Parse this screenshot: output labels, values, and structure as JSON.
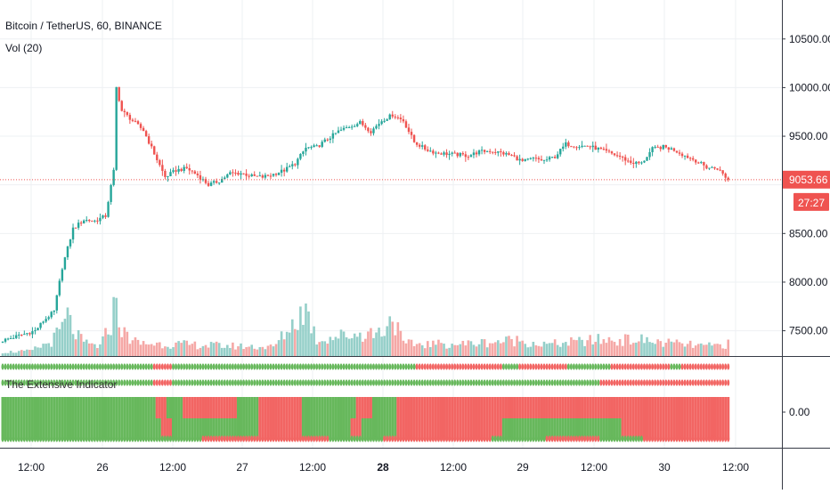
{
  "header": {
    "symbol_line": "Bitcoin / TetherUS, 60, BINANCE",
    "volume_line": "Vol (20)",
    "indicator_title": "The Extensive Indicator"
  },
  "price_axis": {
    "ticks": [
      "10500.00",
      "10000.00",
      "9500.00",
      "9000.00",
      "8500.00",
      "8000.00",
      "7500.00"
    ],
    "last_price": "9053.66",
    "countdown": "27:27"
  },
  "indicator_axis": {
    "ticks": [
      "0.00"
    ]
  },
  "time_axis": {
    "labels": [
      "12:00",
      "26",
      "12:00",
      "27",
      "12:00",
      "28",
      "12:00",
      "29",
      "12:00",
      "30",
      "12:00"
    ],
    "bold": [
      "28"
    ]
  },
  "colors": {
    "up": "#26a69a",
    "down": "#ef5350",
    "up_volume": "#95cfc9",
    "down_volume": "#f5a8a6",
    "indicator_green": "#67b85c",
    "indicator_red": "#f26563",
    "grid": "#eef0f3",
    "border": "#363a45"
  },
  "chart_data": [
    {
      "type": "candlestick",
      "title": "Bitcoin / TetherUS, 60, BINANCE",
      "ylim": [
        7240,
        10800
      ],
      "y_ticks": [
        7500,
        8000,
        8500,
        9000,
        9500,
        10000,
        10500
      ],
      "last_price": 9053.66,
      "price_anchors": [
        [
          0,
          7400
        ],
        [
          6,
          7450
        ],
        [
          12,
          7500
        ],
        [
          15,
          7600
        ],
        [
          19,
          7700
        ],
        [
          22,
          8150
        ],
        [
          26,
          8550
        ],
        [
          30,
          8640
        ],
        [
          34,
          8630
        ],
        [
          38,
          8680
        ],
        [
          41,
          9140
        ],
        [
          42,
          10000
        ],
        [
          44,
          9760
        ],
        [
          48,
          9660
        ],
        [
          52,
          9560
        ],
        [
          56,
          9320
        ],
        [
          60,
          9080
        ],
        [
          64,
          9150
        ],
        [
          68,
          9170
        ],
        [
          72,
          9100
        ],
        [
          76,
          9000
        ],
        [
          80,
          9040
        ],
        [
          84,
          9120
        ],
        [
          88,
          9120
        ],
        [
          92,
          9090
        ],
        [
          96,
          9080
        ],
        [
          100,
          9110
        ],
        [
          104,
          9150
        ],
        [
          108,
          9220
        ],
        [
          112,
          9380
        ],
        [
          116,
          9390
        ],
        [
          120,
          9470
        ],
        [
          124,
          9550
        ],
        [
          128,
          9600
        ],
        [
          132,
          9640
        ],
        [
          136,
          9550
        ],
        [
          140,
          9660
        ],
        [
          144,
          9720
        ],
        [
          148,
          9660
        ],
        [
          152,
          9440
        ],
        [
          156,
          9370
        ],
        [
          160,
          9330
        ],
        [
          164,
          9320
        ],
        [
          168,
          9310
        ],
        [
          172,
          9300
        ],
        [
          176,
          9340
        ],
        [
          180,
          9350
        ],
        [
          184,
          9330
        ],
        [
          188,
          9300
        ],
        [
          192,
          9240
        ],
        [
          196,
          9270
        ],
        [
          200,
          9250
        ],
        [
          204,
          9290
        ],
        [
          208,
          9420
        ],
        [
          212,
          9400
        ],
        [
          216,
          9400
        ],
        [
          220,
          9370
        ],
        [
          224,
          9330
        ],
        [
          228,
          9290
        ],
        [
          232,
          9230
        ],
        [
          236,
          9220
        ],
        [
          240,
          9370
        ],
        [
          244,
          9390
        ],
        [
          248,
          9360
        ],
        [
          252,
          9300
        ],
        [
          256,
          9250
        ],
        [
          260,
          9180
        ],
        [
          264,
          9170
        ],
        [
          268,
          9053
        ]
      ]
    },
    {
      "type": "bar",
      "name": "Vol (20)",
      "volume_anchors": [
        [
          0,
          0.05
        ],
        [
          10,
          0.06
        ],
        [
          18,
          0.18
        ],
        [
          22,
          0.35
        ],
        [
          24,
          0.5
        ],
        [
          26,
          0.32
        ],
        [
          30,
          0.16
        ],
        [
          36,
          0.12
        ],
        [
          40,
          0.4
        ],
        [
          42,
          0.75
        ],
        [
          44,
          0.3
        ],
        [
          50,
          0.16
        ],
        [
          60,
          0.15
        ],
        [
          80,
          0.13
        ],
        [
          100,
          0.11
        ],
        [
          112,
          0.6
        ],
        [
          116,
          0.2
        ],
        [
          124,
          0.25
        ],
        [
          140,
          0.3
        ],
        [
          144,
          0.5
        ],
        [
          148,
          0.15
        ],
        [
          170,
          0.15
        ],
        [
          190,
          0.2
        ],
        [
          200,
          0.14
        ],
        [
          220,
          0.2
        ],
        [
          236,
          0.2
        ],
        [
          240,
          0.18
        ],
        [
          260,
          0.12
        ],
        [
          268,
          0.15
        ]
      ]
    },
    {
      "type": "heatmap",
      "name": "The Extensive Indicator",
      "rows": [
        {
          "kind": "dots",
          "segments": [
            [
              0,
              55,
              "g"
            ],
            [
              56,
              62,
              "r"
            ],
            [
              63,
              92,
              "g"
            ],
            [
              93,
              152,
              "g"
            ],
            [
              153,
              184,
              "r"
            ],
            [
              185,
              190,
              "g"
            ],
            [
              191,
              208,
              "r"
            ],
            [
              209,
              224,
              "g"
            ],
            [
              225,
              246,
              "r"
            ],
            [
              247,
              250,
              "g"
            ],
            [
              251,
              268,
              "r"
            ]
          ]
        },
        {
          "kind": "dots",
          "segments": [
            [
              0,
              55,
              "g"
            ],
            [
              56,
              62,
              "r"
            ],
            [
              63,
              160,
              "g"
            ],
            [
              161,
              220,
              "g"
            ],
            [
              221,
              268,
              "r"
            ]
          ]
        },
        {
          "kind": "bars",
          "segments": [
            [
              0,
              56,
              "g"
            ],
            [
              57,
              60,
              "r"
            ],
            [
              61,
              66,
              "g"
            ],
            [
              67,
              86,
              "r"
            ],
            [
              87,
              94,
              "g"
            ],
            [
              95,
              110,
              "r"
            ],
            [
              111,
              130,
              "g"
            ],
            [
              131,
              136,
              "r"
            ],
            [
              137,
              145,
              "g"
            ],
            [
              146,
              268,
              "r"
            ]
          ]
        },
        {
          "kind": "bars",
          "segments": [
            [
              0,
              58,
              "g"
            ],
            [
              59,
              62,
              "r"
            ],
            [
              63,
              94,
              "g"
            ],
            [
              95,
              110,
              "r"
            ],
            [
              111,
              128,
              "g"
            ],
            [
              129,
              132,
              "r"
            ],
            [
              133,
              145,
              "g"
            ],
            [
              146,
              184,
              "r"
            ],
            [
              185,
              228,
              "g"
            ],
            [
              229,
              268,
              "r"
            ]
          ]
        },
        {
          "kind": "dots",
          "segments": [
            [
              0,
              73,
              "g"
            ],
            [
              74,
              90,
              "r"
            ],
            [
              91,
              120,
              "r"
            ],
            [
              121,
              140,
              "g"
            ],
            [
              141,
              180,
              "r"
            ],
            [
              181,
              200,
              "g"
            ],
            [
              201,
              220,
              "r"
            ],
            [
              221,
              236,
              "g"
            ],
            [
              237,
              268,
              "r"
            ]
          ]
        }
      ]
    }
  ]
}
